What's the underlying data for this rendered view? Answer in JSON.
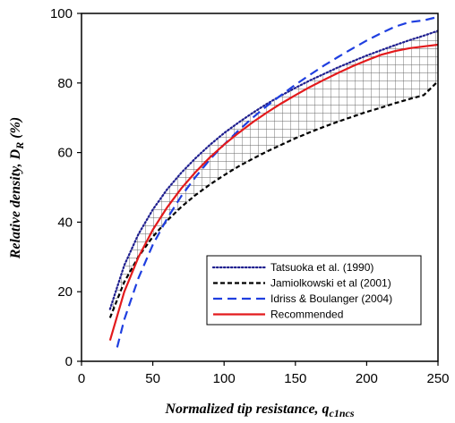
{
  "chart_data": {
    "type": "line",
    "xlabel_main": "Normalized tip resistance, q",
    "xlabel_sub": "c1ncs",
    "ylabel_main": "Relative density, D",
    "ylabel_sub": "R",
    "ylabel_suffix": " (%)",
    "xlim": [
      0,
      250
    ],
    "ylim": [
      0,
      100
    ],
    "xticks": [
      0,
      50,
      100,
      150,
      200,
      250
    ],
    "yticks": [
      0,
      20,
      40,
      60,
      80,
      100
    ],
    "grid": false,
    "legend_position": "bottom-right",
    "shaded_band": {
      "description_none": true,
      "between_series": [
        0,
        1
      ],
      "pattern": "grid",
      "x_range": [
        20,
        250
      ]
    },
    "series": [
      {
        "name": "Tatsuoka et al. (1990)",
        "style": "dotted",
        "color": "#1f1f8f",
        "x": [
          20,
          30,
          40,
          50,
          60,
          70,
          80,
          90,
          100,
          110,
          120,
          130,
          140,
          150,
          160,
          170,
          180,
          190,
          200,
          210,
          220,
          230,
          240,
          250
        ],
        "y": [
          15,
          27.6,
          36.6,
          43.6,
          49.4,
          54.2,
          58.4,
          62.2,
          65.6,
          68.6,
          71.4,
          74,
          76.4,
          78.6,
          80.7,
          82.6,
          84.5,
          86.2,
          87.9,
          89.4,
          90.9,
          92.3,
          93.6,
          95
        ]
      },
      {
        "name": "Jamiolkowski et al (2001)",
        "style": "dashed",
        "color": "#000000",
        "x": [
          20,
          30,
          40,
          50,
          60,
          70,
          80,
          90,
          100,
          110,
          120,
          130,
          140,
          150,
          160,
          170,
          180,
          190,
          200,
          210,
          220,
          230,
          240,
          250
        ],
        "y": [
          12.5,
          22.8,
          30.1,
          35.8,
          40.4,
          44.4,
          47.8,
          50.8,
          53.5,
          56,
          58.2,
          60.3,
          62.2,
          64.1,
          65.8,
          67.4,
          68.9,
          70.3,
          71.7,
          72.9,
          74.2,
          75.4,
          76.5,
          80.5
        ]
      },
      {
        "name": "Idriss & Boulanger (2004)",
        "style": "long-dashed",
        "color": "#1f3fe0",
        "x": [
          25,
          30,
          40,
          50,
          60,
          70,
          80,
          90,
          100,
          110,
          120,
          130,
          140,
          150,
          160,
          170,
          180,
          190,
          200,
          210,
          220,
          230,
          240,
          250
        ],
        "y": [
          4,
          12,
          24,
          33.5,
          41,
          47.5,
          53,
          58,
          62.3,
          66.3,
          70,
          73.4,
          76.5,
          79.5,
          82.3,
          85,
          87.5,
          89.9,
          92.2,
          94.3,
          96.2,
          97.5,
          98,
          99
        ]
      },
      {
        "name": "Recommended",
        "style": "solid",
        "color": "#e31a1c",
        "x": [
          20,
          30,
          40,
          50,
          60,
          70,
          80,
          90,
          100,
          110,
          120,
          130,
          140,
          150,
          160,
          170,
          180,
          190,
          200,
          210,
          220,
          230,
          240,
          250
        ],
        "y": [
          6,
          20,
          30,
          37.8,
          44.2,
          49.7,
          54.4,
          58.6,
          62.3,
          65.6,
          68.7,
          71.5,
          74.1,
          76.5,
          78.8,
          80.9,
          82.9,
          84.8,
          86.5,
          88.1,
          89.2,
          90,
          90.5,
          91
        ]
      }
    ]
  }
}
